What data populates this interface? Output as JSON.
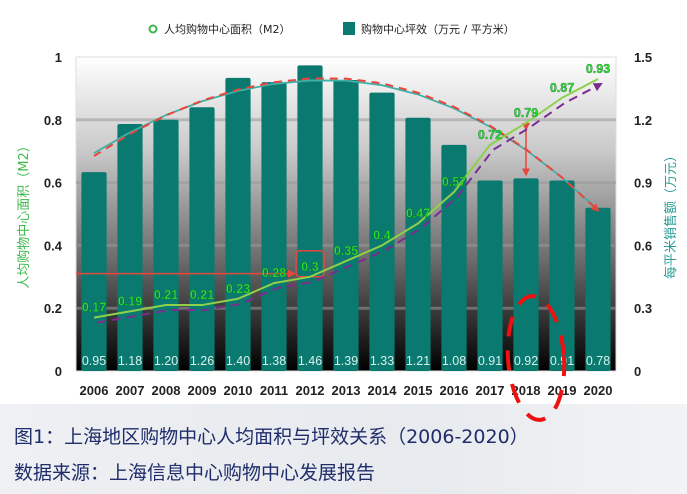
{
  "chart_data": {
    "type": "bar",
    "title": "",
    "categories": [
      "2006",
      "2007",
      "2008",
      "2009",
      "2010",
      "2011",
      "2012",
      "2013",
      "2014",
      "2015",
      "2016",
      "2017",
      "2018",
      "2019",
      "2020"
    ],
    "series": [
      {
        "name": "购物中心坪效（万元 / 平方米）",
        "type": "bar",
        "axis": "right",
        "color": "#0a7a70",
        "values": [
          0.95,
          1.18,
          1.2,
          1.26,
          1.4,
          1.38,
          1.46,
          1.39,
          1.33,
          1.21,
          1.08,
          0.91,
          0.92,
          0.91,
          0.78
        ],
        "labels": [
          "0.95",
          "1.18",
          "1.20",
          "1.26",
          "1.40",
          "1.38",
          "1.46",
          "1.39",
          "1.33",
          "1.21",
          "1.08",
          "0.91",
          "0.92",
          "0.91",
          "0.78"
        ]
      },
      {
        "name": "人均购物中心面积（M2）",
        "type": "line",
        "axis": "left",
        "color": "#8ed04a",
        "values": [
          0.17,
          0.19,
          0.21,
          0.21,
          0.23,
          0.28,
          0.3,
          0.35,
          0.4,
          0.47,
          0.57,
          0.72,
          0.79,
          0.87,
          0.93
        ],
        "labels": [
          "0.17",
          "0.19",
          "0.21",
          "0.21",
          "0.23",
          "0.28",
          "0.3",
          "0.35",
          "0.4",
          "0.47",
          "0.57",
          "0.72",
          "0.79",
          "0.87",
          "0.93"
        ]
      }
    ],
    "left_axis": {
      "label": "人均购物中心面积（M2）",
      "range": [
        0,
        1
      ],
      "ticks": [
        "0",
        "0.2",
        "0.4",
        "0.6",
        "0.8",
        "1"
      ],
      "tick_values": [
        0,
        0.2,
        0.4,
        0.6,
        0.8,
        1
      ],
      "color": "#3cb84a"
    },
    "right_axis": {
      "label": "每平米销售额（万元）",
      "range": [
        0,
        1.5
      ],
      "ticks": [
        "0",
        "0.3",
        "0.6",
        "0.9",
        "1.2",
        "1.5"
      ],
      "tick_values": [
        0,
        0.3,
        0.6,
        0.9,
        1.2,
        1.5
      ],
      "color": "#2a9d96"
    },
    "legend": {
      "placement": "top",
      "items": [
        "人均购物中心面积（M2）",
        "购物中心坪效（万元 / 平方米）"
      ]
    },
    "annotations": {
      "trend_bar_color": "#e8463c",
      "trend_line_color": "#7b2d8e",
      "highlight_2012_value": "0.3",
      "reference_line_value": 0.31,
      "gap_arrow_year": "2018",
      "circled_years": [
        "2017",
        "2018",
        "2019"
      ]
    },
    "grid": true
  },
  "caption": {
    "figure_title": "图1：上海地区购物中心人均面积与坪效关系（2006-2020）",
    "source": "数据来源：上海信息中心购物中心发展报告"
  }
}
